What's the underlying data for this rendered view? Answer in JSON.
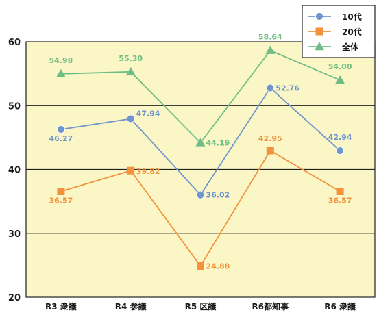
{
  "chart_data": {
    "type": "line",
    "categories": [
      "R3 衆議",
      "R4 参議",
      "R5 区議",
      "R6都知事",
      "R6 衆議"
    ],
    "series": [
      {
        "name": "10代",
        "values": [
          46.27,
          47.94,
          36.02,
          52.76,
          42.94
        ],
        "color": "#6e95cc",
        "marker": "circle"
      },
      {
        "name": "20代",
        "values": [
          36.57,
          39.82,
          24.88,
          42.95,
          36.57
        ],
        "color": "#f2923c",
        "marker": "square"
      },
      {
        "name": "全体",
        "values": [
          54.98,
          55.3,
          44.19,
          58.64,
          54.0
        ],
        "color": "#6fbd85",
        "marker": "triangle"
      }
    ],
    "ylim": [
      20,
      60
    ],
    "yticks": [
      20,
      30,
      40,
      50,
      60
    ],
    "grid": true,
    "legend": "top-right",
    "plot_background": "#fbf6c6",
    "title": "",
    "xlabel": "",
    "ylabel": ""
  }
}
